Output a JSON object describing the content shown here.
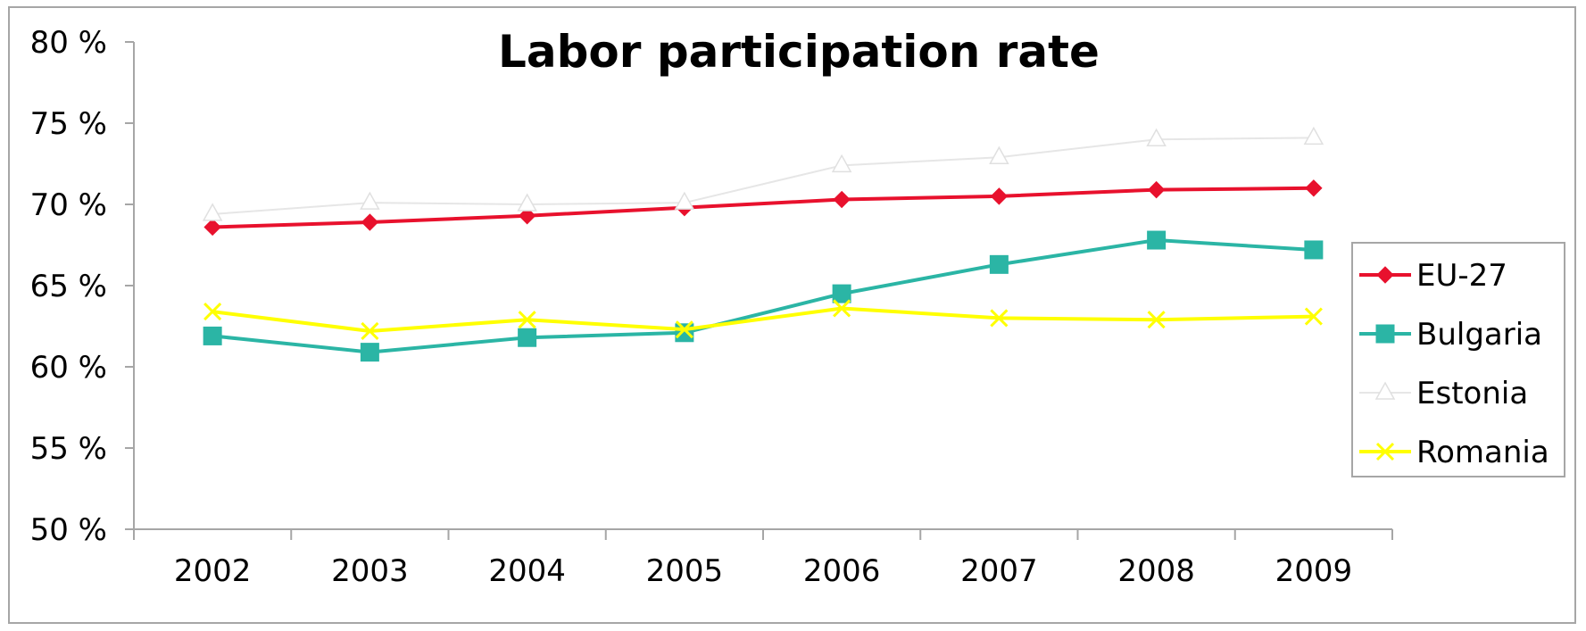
{
  "chart_data": {
    "type": "line",
    "title": "Labor participation rate",
    "xlabel": "",
    "ylabel": "",
    "categories": [
      "2002",
      "2003",
      "2004",
      "2005",
      "2006",
      "2007",
      "2008",
      "2009"
    ],
    "ylim": [
      50,
      80
    ],
    "yticks": [
      50,
      55,
      60,
      65,
      70,
      75,
      80
    ],
    "ytick_labels": [
      "50 %",
      "55 %",
      "60 %",
      "65 %",
      "70 %",
      "75 %",
      "80 %"
    ],
    "grid": false,
    "legend_position": "right",
    "series": [
      {
        "name": "EU-27",
        "color": "#e8112d",
        "marker": "diamond",
        "values": [
          68.6,
          68.9,
          69.3,
          69.8,
          70.3,
          70.5,
          70.9,
          71.0
        ]
      },
      {
        "name": "Bulgaria",
        "color": "#2bb5a5",
        "marker": "square",
        "values": [
          61.9,
          60.9,
          61.8,
          62.1,
          64.5,
          66.3,
          67.8,
          67.2
        ]
      },
      {
        "name": "Estonia",
        "color": "#f0f0f0",
        "marker": "triangle",
        "values": [
          69.4,
          70.1,
          70.0,
          70.1,
          72.4,
          72.9,
          74.0,
          74.1
        ]
      },
      {
        "name": "Romania",
        "color": "#ffff00",
        "marker": "x",
        "values": [
          63.4,
          62.2,
          62.9,
          62.3,
          63.6,
          63.0,
          62.9,
          63.1
        ]
      }
    ]
  }
}
